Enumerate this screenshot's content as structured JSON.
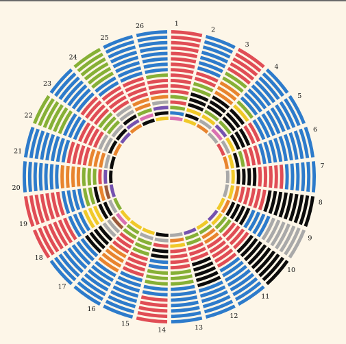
{
  "chart_data": {
    "type": "radial-stacked-bar",
    "title": "",
    "colors": {
      "blue": "#2d7bcb",
      "red": "#e04d55",
      "green": "#86b036",
      "orange": "#e8842e",
      "black": "#0c0c0c",
      "gray": "#a9a9a9",
      "yellow": "#f0c929",
      "purple": "#7552b0",
      "pink": "#d970b1",
      "brown": "#9b5a3a"
    },
    "rings": 17,
    "ring_order": "outer-to-inner",
    "segments": [
      {
        "label": "1",
        "stack": [
          [
            "red",
            12
          ],
          [
            "green",
            1
          ],
          [
            "red",
            1
          ],
          [
            "green",
            1
          ],
          [
            "blue",
            1
          ],
          [
            "pink",
            1
          ]
        ]
      },
      {
        "label": "2",
        "stack": [
          [
            "blue",
            7
          ],
          [
            "red",
            2
          ],
          [
            "green",
            2
          ],
          [
            "black",
            3
          ],
          [
            "yellow",
            1
          ],
          [
            "black",
            1
          ],
          [
            "yellow",
            1
          ]
        ]
      },
      {
        "label": "3",
        "stack": [
          [
            "red",
            5
          ],
          [
            "green",
            2
          ],
          [
            "orange",
            3
          ],
          [
            "black",
            3
          ],
          [
            "green",
            1
          ],
          [
            "yellow",
            1
          ],
          [
            "gray",
            1
          ],
          [
            "orange",
            1
          ]
        ]
      },
      {
        "label": "4",
        "stack": [
          [
            "blue",
            8
          ],
          [
            "green",
            1
          ],
          [
            "yellow",
            1
          ],
          [
            "black",
            3
          ],
          [
            "green",
            1
          ],
          [
            "purple",
            1
          ],
          [
            "pink",
            1
          ],
          [
            "gray",
            1
          ]
        ]
      },
      {
        "label": "5",
        "stack": [
          [
            "blue",
            9
          ],
          [
            "red",
            2
          ],
          [
            "black",
            3
          ],
          [
            "yellow",
            1
          ],
          [
            "gray",
            1
          ],
          [
            "red",
            1
          ]
        ]
      },
      {
        "label": "6",
        "stack": [
          [
            "blue",
            10
          ],
          [
            "red",
            3
          ],
          [
            "green",
            1
          ],
          [
            "black",
            1
          ],
          [
            "yellow",
            1
          ],
          [
            "orange",
            1
          ]
        ]
      },
      {
        "label": "7",
        "stack": [
          [
            "blue",
            6
          ],
          [
            "red",
            5
          ],
          [
            "black",
            4
          ],
          [
            "yellow",
            1
          ],
          [
            "gray",
            1
          ]
        ]
      },
      {
        "label": "8",
        "stack": [
          [
            "black",
            9
          ],
          [
            "red",
            5
          ],
          [
            "orange",
            1
          ],
          [
            "yellow",
            1
          ],
          [
            "gray",
            1
          ]
        ]
      },
      {
        "label": "9",
        "stack": [
          [
            "gray",
            7
          ],
          [
            "blue",
            4
          ],
          [
            "black",
            4
          ],
          [
            "orange",
            1
          ],
          [
            "yellow",
            1
          ]
        ]
      },
      {
        "label": "10",
        "stack": [
          [
            "black",
            9
          ],
          [
            "red",
            4
          ],
          [
            "green",
            2
          ],
          [
            "yellow",
            1
          ],
          [
            "purple",
            1
          ]
        ]
      },
      {
        "label": "11",
        "stack": [
          [
            "blue",
            8
          ],
          [
            "red",
            5
          ],
          [
            "orange",
            2
          ],
          [
            "green",
            1
          ],
          [
            "yellow",
            1
          ]
        ]
      },
      {
        "label": "12",
        "stack": [
          [
            "blue",
            6
          ],
          [
            "black",
            5
          ],
          [
            "red",
            3
          ],
          [
            "green",
            2
          ],
          [
            "purple",
            1
          ]
        ]
      },
      {
        "label": "13",
        "stack": [
          [
            "blue",
            7
          ],
          [
            "green",
            3
          ],
          [
            "red",
            4
          ],
          [
            "yellow",
            1
          ],
          [
            "orange",
            1
          ],
          [
            "gray",
            1
          ]
        ]
      },
      {
        "label": "14",
        "stack": [
          [
            "red",
            5
          ],
          [
            "blue",
            2
          ],
          [
            "green",
            3
          ],
          [
            "blue",
            2
          ],
          [
            "black",
            2
          ],
          [
            "red",
            1
          ],
          [
            "gray",
            1
          ],
          [
            "black",
            1
          ]
        ]
      },
      {
        "label": "15",
        "stack": [
          [
            "blue",
            8
          ],
          [
            "red",
            4
          ],
          [
            "green",
            3
          ],
          [
            "gray",
            1
          ],
          [
            "yellow",
            1
          ]
        ]
      },
      {
        "label": "16",
        "stack": [
          [
            "blue",
            7
          ],
          [
            "orange",
            4
          ],
          [
            "red",
            3
          ],
          [
            "green",
            2
          ],
          [
            "yellow",
            1
          ]
        ]
      },
      {
        "label": "17",
        "stack": [
          [
            "blue",
            8
          ],
          [
            "black",
            4
          ],
          [
            "gray",
            2
          ],
          [
            "brown",
            1
          ],
          [
            "pink",
            1
          ],
          [
            "yellow",
            1
          ]
        ]
      },
      {
        "label": "18",
        "stack": [
          [
            "red",
            7
          ],
          [
            "blue",
            3
          ],
          [
            "yellow",
            3
          ],
          [
            "black",
            2
          ],
          [
            "gray",
            1
          ],
          [
            "green",
            1
          ]
        ]
      },
      {
        "label": "19",
        "stack": [
          [
            "red",
            7
          ],
          [
            "blue",
            4
          ],
          [
            "green",
            2
          ],
          [
            "black",
            1
          ],
          [
            "orange",
            1
          ],
          [
            "brown",
            1
          ],
          [
            "purple",
            1
          ]
        ]
      },
      {
        "label": "20",
        "stack": [
          [
            "blue",
            7
          ],
          [
            "orange",
            4
          ],
          [
            "green",
            3
          ],
          [
            "red",
            1
          ],
          [
            "purple",
            1
          ],
          [
            "black",
            1
          ]
        ]
      },
      {
        "label": "21",
        "stack": [
          [
            "blue",
            8
          ],
          [
            "red",
            4
          ],
          [
            "orange",
            3
          ],
          [
            "gray",
            1
          ],
          [
            "black",
            1
          ]
        ]
      },
      {
        "label": "22",
        "stack": [
          [
            "green",
            6
          ],
          [
            "blue",
            3
          ],
          [
            "red",
            4
          ],
          [
            "gray",
            2
          ],
          [
            "black",
            1
          ],
          [
            "orange",
            1
          ]
        ]
      },
      {
        "label": "23",
        "stack": [
          [
            "blue",
            7
          ],
          [
            "red",
            4
          ],
          [
            "green",
            3
          ],
          [
            "gray",
            1
          ],
          [
            "black",
            1
          ],
          [
            "purple",
            1
          ]
        ]
      },
      {
        "label": "24",
        "stack": [
          [
            "green",
            6
          ],
          [
            "blue",
            2
          ],
          [
            "red",
            4
          ],
          [
            "gray",
            2
          ],
          [
            "black",
            1
          ],
          [
            "purple",
            1
          ],
          [
            "orange",
            1
          ]
        ]
      },
      {
        "label": "25",
        "stack": [
          [
            "blue",
            8
          ],
          [
            "red",
            4
          ],
          [
            "orange",
            2
          ],
          [
            "green",
            1
          ],
          [
            "pink",
            1
          ],
          [
            "black",
            1
          ]
        ]
      },
      {
        "label": "26",
        "stack": [
          [
            "blue",
            8
          ],
          [
            "green",
            1
          ],
          [
            "red",
            3
          ],
          [
            "orange",
            1
          ],
          [
            "gray",
            1
          ],
          [
            "purple",
            1
          ],
          [
            "black",
            1
          ],
          [
            "yellow",
            1
          ]
        ]
      }
    ]
  }
}
